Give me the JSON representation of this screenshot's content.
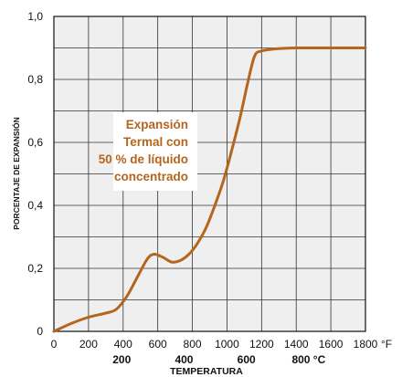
{
  "chart_data": {
    "type": "line",
    "title": "",
    "xlabel": "TEMPERATURA",
    "ylabel": "PORCENTAJE DE EXPANSIÓN",
    "xlim": [
      0,
      1800
    ],
    "ylim": [
      0,
      1.0
    ],
    "grid": true,
    "x_ticks_f": [
      "0",
      "200",
      "400",
      "600",
      "800",
      "1000",
      "1200",
      "1400",
      "1600",
      "1800"
    ],
    "x_unit_f": "°F",
    "x_ticks_c": [
      {
        "label": "200",
        "f": 392
      },
      {
        "label": "400",
        "f": 752
      },
      {
        "label": "600",
        "f": 1112
      },
      {
        "label": "800",
        "f": 1472
      }
    ],
    "x_unit_c": "°C",
    "y_ticks": [
      {
        "label": "0",
        "v": 0
      },
      {
        "label": "0,2",
        "v": 0.2
      },
      {
        "label": "0,4",
        "v": 0.4
      },
      {
        "label": "0,6",
        "v": 0.6
      },
      {
        "label": "0,8",
        "v": 0.8
      },
      {
        "label": "1,0",
        "v": 1.0
      }
    ],
    "annotation": [
      "Expansión",
      "Termal con",
      "50 % de líquido",
      "concentrado"
    ],
    "series": [
      {
        "color": "#b5651d",
        "points": [
          [
            0,
            0.0
          ],
          [
            100,
            0.025
          ],
          [
            200,
            0.045
          ],
          [
            300,
            0.058
          ],
          [
            360,
            0.07
          ],
          [
            420,
            0.11
          ],
          [
            480,
            0.17
          ],
          [
            540,
            0.23
          ],
          [
            580,
            0.245
          ],
          [
            630,
            0.235
          ],
          [
            680,
            0.22
          ],
          [
            730,
            0.225
          ],
          [
            780,
            0.245
          ],
          [
            830,
            0.28
          ],
          [
            880,
            0.33
          ],
          [
            930,
            0.4
          ],
          [
            980,
            0.48
          ],
          [
            1030,
            0.58
          ],
          [
            1080,
            0.69
          ],
          [
            1120,
            0.79
          ],
          [
            1160,
            0.875
          ],
          [
            1200,
            0.89
          ],
          [
            1250,
            0.895
          ],
          [
            1300,
            0.898
          ],
          [
            1400,
            0.9
          ],
          [
            1600,
            0.9
          ],
          [
            1800,
            0.9
          ]
        ]
      }
    ]
  }
}
